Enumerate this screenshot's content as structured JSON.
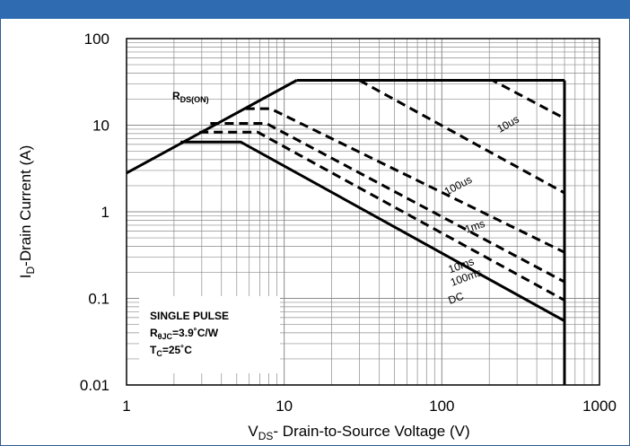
{
  "chart_data": {
    "type": "line",
    "x_scale": "log",
    "y_scale": "log",
    "xlim": [
      1,
      1000
    ],
    "ylim": [
      0.01,
      100
    ],
    "x_ticks": [
      "1",
      "10",
      "100",
      "1000"
    ],
    "y_ticks": [
      "100",
      "10",
      "1",
      "0.1",
      "0.01"
    ],
    "xlabel": {
      "prefix": "V",
      "sub": "DS",
      "suffix": "- Drain-to-Source Voltage (V)"
    },
    "ylabel": {
      "prefix": "I",
      "sub": "D",
      "suffix": "-Drain Current (A)"
    },
    "rds_label": {
      "main": "R",
      "sub": "DS(ON)"
    },
    "grid": true,
    "note": {
      "line1": "SINGLE PULSE",
      "line2_main": "R",
      "line2_sub": "θJC",
      "line2_rest": "=3.9˚C/W",
      "line3_main": "T",
      "line3_sub": "C",
      "line3_rest": "=25˚C"
    },
    "series": [
      {
        "name": "R_DS(ON) limit",
        "style": "solid",
        "x": [
          1,
          12
        ],
        "y": [
          2.8,
          33
        ]
      },
      {
        "name": "10us",
        "style": "dashed",
        "x": [
          30,
          210,
          600
        ],
        "y": [
          33,
          33,
          12
        ]
      },
      {
        "name": "100us",
        "style": "dashed",
        "x": [
          30,
          600
        ],
        "y": [
          33,
          1.65
        ]
      },
      {
        "name": "1ms",
        "style": "dashed",
        "x": [
          5.7,
          8.2,
          600
        ],
        "y": [
          15.5,
          15.5,
          0.34
        ]
      },
      {
        "name": "10ms",
        "style": "dashed",
        "x": [
          3.4,
          7.7,
          600
        ],
        "y": [
          10.5,
          10.5,
          0.155
        ]
      },
      {
        "name": "100ms",
        "style": "dashed",
        "x": [
          2.9,
          6.8,
          600
        ],
        "y": [
          8.3,
          8.3,
          0.095
        ]
      },
      {
        "name": "DC",
        "style": "solid",
        "x": [
          2.2,
          5.3,
          600
        ],
        "y": [
          6.4,
          6.4,
          0.055
        ]
      },
      {
        "name": "current limit",
        "style": "solid",
        "x": [
          12,
          600
        ],
        "y": [
          33,
          33
        ]
      },
      {
        "name": "voltage limit",
        "style": "solid",
        "x": [
          600,
          600
        ],
        "y": [
          33,
          0.01
        ]
      }
    ],
    "curve_labels": [
      {
        "text": "10us",
        "x": 270,
        "y": 9.5,
        "angle": -30
      },
      {
        "text": "100us",
        "x": 130,
        "y": 1.85,
        "angle": -28
      },
      {
        "text": "1ms",
        "x": 165,
        "y": 0.62,
        "angle": -20
      },
      {
        "text": "10ms",
        "x": 135,
        "y": 0.22,
        "angle": -20
      },
      {
        "text": "100ms",
        "x": 145,
        "y": 0.16,
        "angle": -20
      },
      {
        "text": "DC",
        "x": 125,
        "y": 0.092,
        "angle": -20
      }
    ]
  }
}
